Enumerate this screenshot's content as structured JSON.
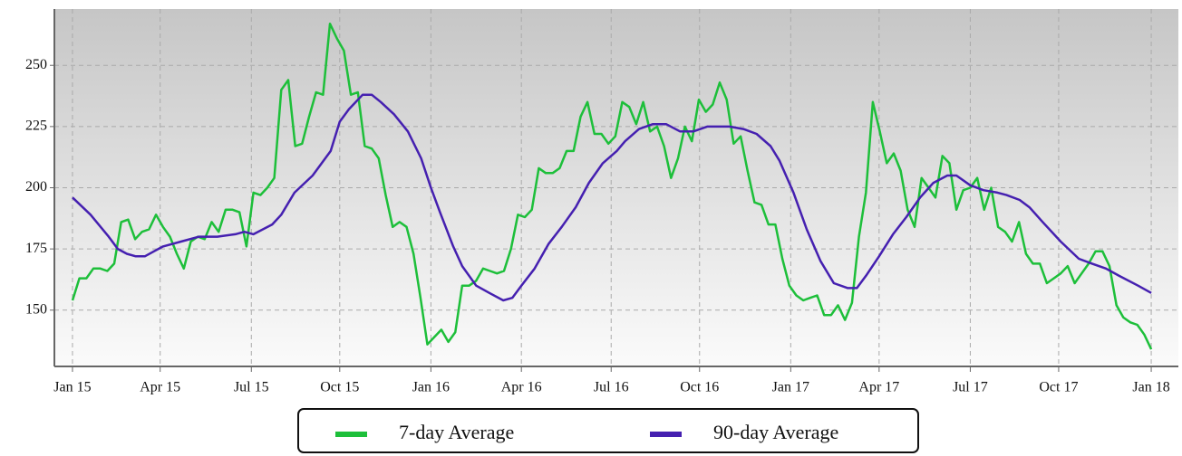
{
  "chart_data": {
    "type": "line",
    "ylim": [
      127,
      273
    ],
    "yticks": [
      150,
      175,
      200,
      225,
      250
    ],
    "xlim": [
      -2.6,
      158.9
    ],
    "xticks": [
      {
        "value": 0,
        "label": "Jan 15"
      },
      {
        "value": 12.6,
        "label": "Apr 15"
      },
      {
        "value": 25.7,
        "label": "Jul 15"
      },
      {
        "value": 38.4,
        "label": "Oct 15"
      },
      {
        "value": 51.5,
        "label": "Jan 16"
      },
      {
        "value": 64.5,
        "label": "Apr 16"
      },
      {
        "value": 77.4,
        "label": "Jul 16"
      },
      {
        "value": 90.1,
        "label": "Oct 16"
      },
      {
        "value": 103.2,
        "label": "Jan 17"
      },
      {
        "value": 115.9,
        "label": "Apr 17"
      },
      {
        "value": 129.0,
        "label": "Jul 17"
      },
      {
        "value": 141.7,
        "label": "Oct 17"
      },
      {
        "value": 155,
        "label": "Jan 18"
      }
    ],
    "grid": true,
    "legend": "bottom",
    "series": [
      {
        "name": "7-day Average",
        "color": "#1dbf3a",
        "x": [
          0,
          1,
          2,
          3,
          4,
          5,
          6,
          7,
          8,
          9,
          10,
          11,
          12,
          13,
          14,
          15,
          16,
          17,
          18,
          19,
          20,
          21,
          22,
          23,
          24,
          25,
          26,
          27,
          28,
          29,
          30,
          31,
          32,
          33,
          34,
          35,
          36,
          37,
          38,
          39,
          40,
          41,
          42,
          43,
          44,
          45,
          46,
          47,
          48,
          49,
          50,
          51,
          52,
          53,
          54,
          55,
          56,
          57,
          58,
          59,
          60,
          61,
          62,
          63,
          64,
          65,
          66,
          67,
          68,
          69,
          70,
          71,
          72,
          73,
          74,
          75,
          76,
          77,
          78,
          79,
          80,
          81,
          82,
          83,
          84,
          85,
          86,
          87,
          88,
          89,
          90,
          91,
          92,
          93,
          94,
          95,
          96,
          97,
          98,
          99,
          100,
          101,
          102,
          103,
          104,
          105,
          106,
          107,
          108,
          109,
          110,
          111,
          112,
          113,
          114,
          115,
          116,
          117,
          118,
          119,
          120,
          121,
          122,
          123,
          124,
          125,
          126,
          127,
          128,
          129,
          130,
          131,
          132,
          133,
          134,
          135,
          136,
          137,
          138,
          139,
          140,
          141,
          142,
          143,
          144,
          145,
          146,
          147,
          148,
          149,
          150,
          151,
          152,
          153,
          154,
          155
        ],
        "values": [
          154,
          163,
          163,
          167,
          167,
          166,
          169,
          186,
          187,
          179,
          182,
          183,
          189,
          184,
          180,
          173,
          167,
          178,
          180,
          179,
          186,
          182,
          191,
          191,
          190,
          176,
          198,
          197,
          200,
          204,
          240,
          244,
          217,
          218,
          229,
          239,
          238,
          267,
          261,
          256,
          238,
          239,
          217,
          216,
          212,
          197,
          184,
          186,
          184,
          173,
          155,
          136,
          139,
          142,
          137,
          141,
          160,
          160,
          162,
          167,
          166,
          165,
          166,
          175,
          189,
          188,
          191,
          208,
          206,
          206,
          208,
          215,
          215,
          229,
          235,
          222,
          222,
          218,
          221,
          235,
          233,
          226,
          235,
          223,
          225,
          217,
          204,
          212,
          225,
          219,
          236,
          231,
          234,
          243,
          236,
          218,
          221,
          207,
          194,
          193,
          185,
          185,
          171,
          160,
          156,
          154,
          155,
          156,
          148,
          148,
          152,
          146,
          153,
          180,
          198,
          235,
          223,
          210,
          214,
          207,
          191,
          184,
          204,
          200,
          196,
          213,
          210,
          191,
          199,
          200,
          204,
          191,
          200,
          184,
          182,
          178,
          186,
          173,
          169,
          169,
          161,
          163,
          165,
          168,
          161,
          165,
          169,
          174,
          174,
          168,
          152,
          147,
          145,
          144,
          140,
          134
        ]
      },
      {
        "name": "90-day Average",
        "color": "#4520b0",
        "x": [
          0,
          2.6,
          5.2,
          6.5,
          7.8,
          9.1,
          10.4,
          11.7,
          13.0,
          15.6,
          18.2,
          20.8,
          23.4,
          24.7,
          26.0,
          28.7,
          30.0,
          31.9,
          34.5,
          37.1,
          38.4,
          39.7,
          41.7,
          43.0,
          44.3,
          46.2,
          48.2,
          50.1,
          51.5,
          52.8,
          54.7,
          56.0,
          58.0,
          59.9,
          61.9,
          63.2,
          64.5,
          66.4,
          68.4,
          70.3,
          72.3,
          74.2,
          76.2,
          78.2,
          79.4,
          81.4,
          83.4,
          85.3,
          87.3,
          89.2,
          91.2,
          93.1,
          94.4,
          96.4,
          98.3,
          100.3,
          101.6,
          103.6,
          105.5,
          107.5,
          109.4,
          111.4,
          112.7,
          114.0,
          115.9,
          117.9,
          119.8,
          121.8,
          123.7,
          125.7,
          127.0,
          129.0,
          130.9,
          132.9,
          134.2,
          136.1,
          137.5,
          139.4,
          142.0,
          144.6,
          146.5,
          148.5,
          150.4,
          153.1,
          155
        ],
        "values": [
          196,
          189,
          180,
          175,
          173,
          172,
          172,
          174,
          176,
          178,
          180,
          180,
          181,
          182,
          181,
          185,
          189,
          198,
          205,
          215,
          227,
          232,
          238,
          238,
          235,
          230,
          223,
          212,
          200,
          190,
          176,
          168,
          160,
          157,
          154,
          155,
          160,
          167,
          177,
          184,
          192,
          202,
          210,
          215,
          219,
          224,
          226,
          226,
          223,
          223,
          225,
          225,
          225,
          224,
          222,
          217,
          211,
          198,
          183,
          170,
          161,
          159,
          159,
          164,
          172,
          181,
          188,
          196,
          202,
          205,
          205,
          201,
          199,
          198,
          197,
          195,
          192,
          186,
          178,
          171,
          169,
          167,
          164,
          160,
          157
        ]
      }
    ]
  }
}
